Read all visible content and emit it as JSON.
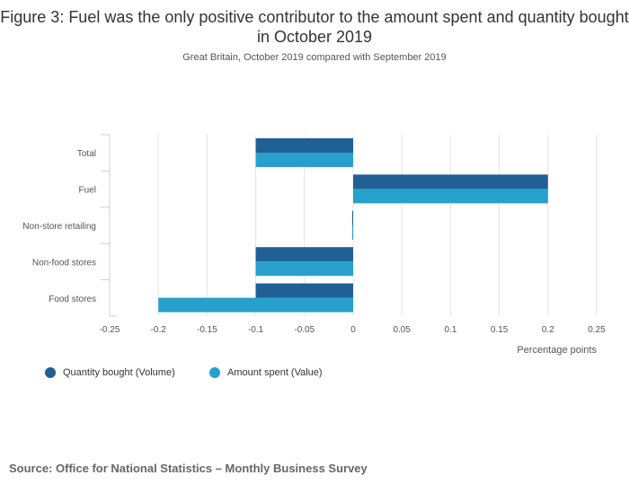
{
  "chart_data": {
    "type": "bar",
    "orientation": "horizontal",
    "title": "Figure 3: Fuel was the only positive contributor to the amount spent and quantity bought in October 2019",
    "subtitle": "Great Britain, October 2019 compared with September 2019",
    "categories": [
      "Total",
      "Fuel",
      "Non-store retailing",
      "Non-food stores",
      "Food stores"
    ],
    "series": [
      {
        "name": "Quantity bought (Volume)",
        "color": "#206095",
        "values": [
          -0.1,
          0.2,
          -0.001,
          -0.1,
          -0.1
        ]
      },
      {
        "name": "Amount spent (Value)",
        "color": "#27a0cc",
        "values": [
          -0.1,
          0.2,
          -0.001,
          -0.1,
          -0.2
        ]
      }
    ],
    "xlabel": "Percentage points",
    "xlim": [
      -0.25,
      0.25
    ],
    "xticks": [
      "-0.25",
      "-0.2",
      "-0.15",
      "-0.1",
      "-0.05",
      "0",
      "0.05",
      "0.1",
      "0.15",
      "0.2",
      "0.25"
    ],
    "grid": true,
    "legend": "bottom-left"
  },
  "source": "Source: Office for National Statistics – Monthly Business Survey"
}
